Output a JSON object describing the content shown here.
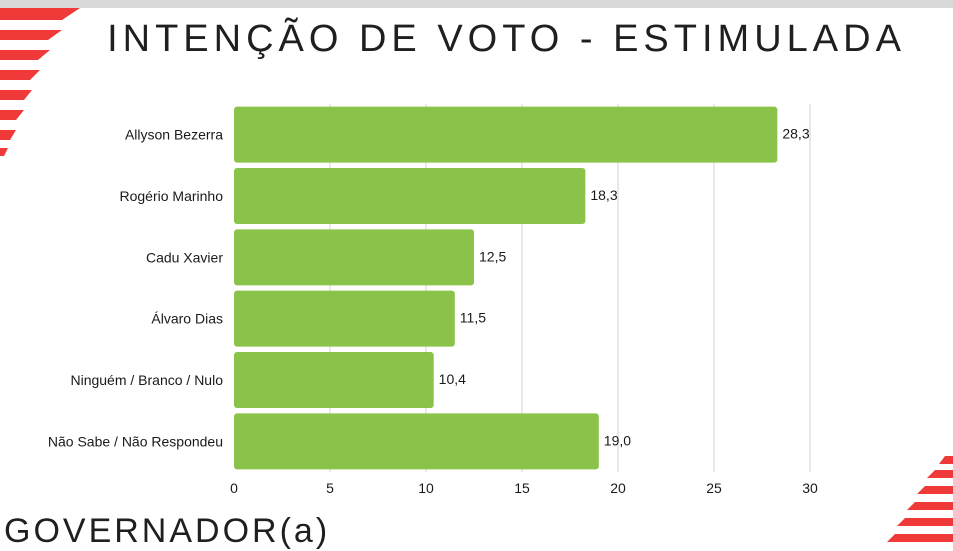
{
  "header": {
    "title": "INTENÇÃO DE VOTO - ESTIMULADA"
  },
  "footer": {
    "label": "GOVERNADOR(a)"
  },
  "colors": {
    "bar": "#8bc34a",
    "grid": "#d0d0d0",
    "accent": "#f03a3a",
    "top_strip": "#d9d9d9"
  },
  "chart_data": {
    "type": "bar",
    "orientation": "horizontal",
    "categories": [
      "Allyson Bezerra",
      "Rogério Marinho",
      "Cadu Xavier",
      "Álvaro Dias",
      "Ninguém / Branco / Nulo",
      "Não Sabe / Não Respondeu"
    ],
    "values": [
      28.3,
      18.3,
      12.5,
      11.5,
      10.4,
      19.0
    ],
    "value_labels": [
      "28,3",
      "18,3",
      "12,5",
      "11,5",
      "10,4",
      "19,0"
    ],
    "xlim": [
      0,
      30
    ],
    "xticks": [
      0,
      5,
      10,
      15,
      20,
      25,
      30
    ],
    "grid": true
  }
}
